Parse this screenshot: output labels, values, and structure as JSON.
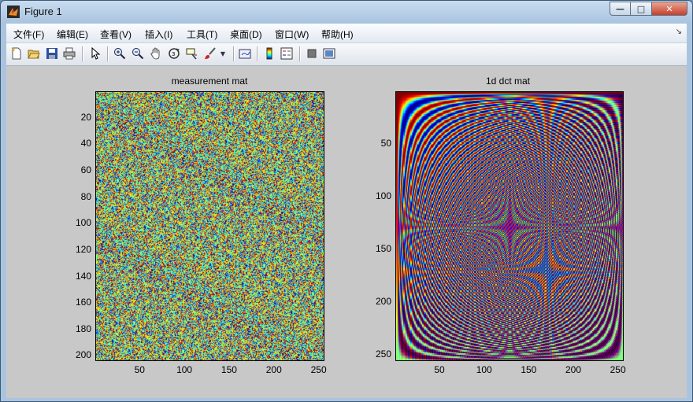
{
  "window": {
    "title": "Figure 1",
    "min_label": "—",
    "max_label": "□",
    "close_label": "✕"
  },
  "menu": [
    "文件(F)",
    "编辑(E)",
    "查看(V)",
    "插入(I)",
    "工具(T)",
    "桌面(D)",
    "窗口(W)",
    "帮助(H)"
  ],
  "toolbar": [
    "new-figure-icon",
    "open-file-icon",
    "save-icon",
    "print-icon",
    "pointer-icon",
    "zoom-in-icon",
    "zoom-out-icon",
    "pan-hand-icon",
    "rotate-3d-icon",
    "data-cursor-icon",
    "brush-icon",
    "brush-dropdown-icon",
    "link-plot-icon",
    "colorbar-icon",
    "legend-icon",
    "hide-plot-tools-icon",
    "show-plot-tools-icon"
  ],
  "chart_data": [
    {
      "type": "heatmap",
      "title": "measurement mat",
      "xlabel": "",
      "ylabel": "",
      "xlim": [
        0.5,
        256.5
      ],
      "ylim": [
        0.5,
        204.5
      ],
      "y_direction": "reverse",
      "x_ticks": [
        50,
        100,
        150,
        200,
        250
      ],
      "y_ticks": [
        20,
        40,
        60,
        80,
        100,
        120,
        140,
        160,
        180,
        200
      ],
      "colormap": "jet",
      "content": "random measurement matrix (noise)"
    },
    {
      "type": "heatmap",
      "title": "1d dct mat",
      "xlabel": "",
      "ylabel": "",
      "xlim": [
        0.5,
        256.5
      ],
      "ylim": [
        0.5,
        256.5
      ],
      "y_direction": "reverse",
      "x_ticks": [
        50,
        100,
        150,
        200,
        250
      ],
      "y_ticks": [
        50,
        100,
        150,
        200,
        250
      ],
      "colormap": "jet",
      "content": "256x256 DCT basis matrix"
    }
  ]
}
